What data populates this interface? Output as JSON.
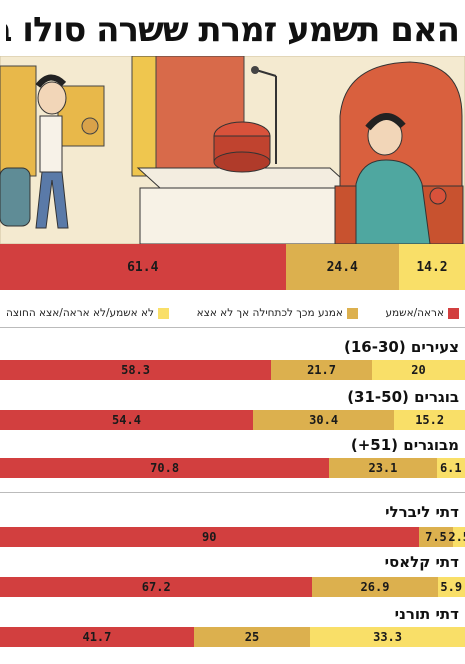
{
  "title": "האם תשמע זמרת ששרה סולו באירוע?",
  "colors": {
    "red": "#d23f3f",
    "tan": "#dcb04e",
    "yellow": "#f9df68"
  },
  "legend": [
    {
      "label": "אראה/אשמע",
      "color": "#d23f3f"
    },
    {
      "label": "אמנע מכך לכתחילה אך לא אצא",
      "color": "#dcb04e"
    },
    {
      "label": "לא אשמע/לא אראה/אצא החוצה",
      "color": "#f9df68"
    }
  ],
  "chart_data": {
    "type": "bar",
    "orientation": "horizontal-stacked-100",
    "title": "האם תשמע זמרת ששרה סולו באירוע?",
    "series_order": [
      "אראה/אשמע",
      "אמנע מכך לכתחילה אך לא אצא",
      "לא אשמע/לא אראה/אצא החוצה"
    ],
    "overall": {
      "values": [
        61.4,
        24.4,
        14.2
      ]
    },
    "groups": [
      {
        "label": "צעירים (16-30)",
        "values": [
          58.3,
          21.7,
          20
        ]
      },
      {
        "label": "בוגרים (31-50)",
        "values": [
          54.4,
          30.4,
          15.2
        ]
      },
      {
        "label": "מבוגרים (51+)",
        "values": [
          70.8,
          23.1,
          6.1
        ]
      },
      {
        "label": "דתי ליברלי",
        "values": [
          90,
          7.5,
          2.5
        ]
      },
      {
        "label": "דתי קלאסי",
        "values": [
          67.2,
          26.9,
          5.9
        ]
      },
      {
        "label": "דתי תורני",
        "values": [
          41.7,
          25,
          33.3
        ]
      }
    ]
  }
}
